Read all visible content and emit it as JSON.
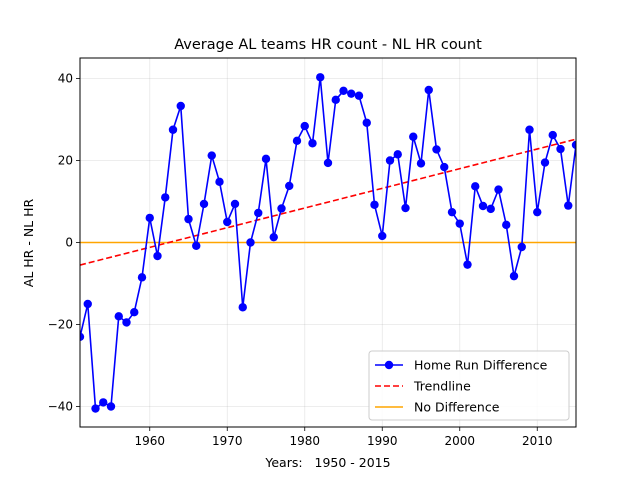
{
  "chart_data": {
    "type": "line",
    "title": "Average AL teams HR count - NL HR count",
    "xlabel": "Years:   1950 - 2015",
    "ylabel": "AL HR - NL HR",
    "xlim": [
      1951,
      2015
    ],
    "ylim": [
      -45,
      45
    ],
    "x_ticks": [
      1960,
      1970,
      1980,
      1990,
      2000,
      2010
    ],
    "y_ticks": [
      -40,
      -20,
      0,
      20,
      40
    ],
    "grid": true,
    "legend_position": "lower-right",
    "series": [
      {
        "name": "Home Run Difference",
        "color": "#0000ff",
        "marker": "circle",
        "x": [
          1951,
          1952,
          1953,
          1954,
          1955,
          1956,
          1957,
          1958,
          1959,
          1960,
          1961,
          1962,
          1963,
          1964,
          1965,
          1966,
          1967,
          1968,
          1969,
          1970,
          1971,
          1972,
          1973,
          1974,
          1975,
          1976,
          1977,
          1978,
          1979,
          1980,
          1981,
          1982,
          1983,
          1984,
          1985,
          1986,
          1987,
          1988,
          1989,
          1990,
          1991,
          1992,
          1993,
          1994,
          1995,
          1996,
          1997,
          1998,
          1999,
          2000,
          2001,
          2002,
          2003,
          2004,
          2005,
          2006,
          2007,
          2008,
          2009,
          2010,
          2011,
          2012,
          2013,
          2014,
          2015
        ],
        "values": [
          -23,
          -15,
          -40.5,
          -39,
          -40,
          -18,
          -19.5,
          -17,
          -8.5,
          6,
          -3.3,
          11,
          27.5,
          33.3,
          5.7,
          -0.8,
          9.4,
          21.2,
          14.8,
          5,
          9.4,
          -15.8,
          0,
          7.2,
          20.4,
          1.3,
          8.3,
          13.8,
          24.8,
          28.4,
          24.2,
          40.3,
          19.4,
          34.8,
          37,
          36.3,
          35.8,
          29.2,
          9.2,
          1.6,
          20,
          21.5,
          8.4,
          25.8,
          19.3,
          37.2,
          22.7,
          18.4,
          7.4,
          4.6,
          -5.4,
          13.7,
          8.9,
          8.2,
          12.9,
          4.3,
          -8.2,
          -1.1,
          27.5,
          7.4,
          19.5,
          26.2,
          22.8,
          9,
          23.8
        ]
      },
      {
        "name": "Trendline",
        "color": "#ff0000",
        "style": "dashed",
        "x": [
          1951,
          2015
        ],
        "values": [
          -5.5,
          25.2
        ]
      },
      {
        "name": "No Difference",
        "color": "#ffa500",
        "style": "solid",
        "x": [
          1951,
          2015
        ],
        "values": [
          0,
          0
        ]
      }
    ]
  }
}
